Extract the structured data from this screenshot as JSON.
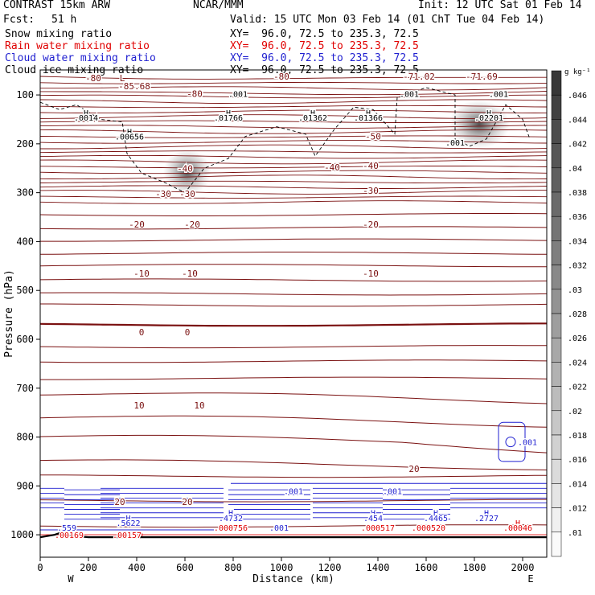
{
  "header": {
    "model": "CONTRAST 15km ARW",
    "org": "NCAR/MMM",
    "init": "Init: 12 UTC Sat 01 Feb 14",
    "fcst_label": "Fcst:",
    "fcst_value": "51 h",
    "valid": "Valid: 15 UTC Mon 03 Feb 14 (01 ChT Tue 04 Feb 14)",
    "fields": [
      {
        "label": "Snow mixing ratio",
        "xy": "XY=  96.0, 72.5 to 235.3, 72.5",
        "color": "#000000"
      },
      {
        "label": "Rain water mixing ratio",
        "xy": "XY=  96.0, 72.5 to 235.3, 72.5",
        "color": "#e00000"
      },
      {
        "label": "Cloud water mixing ratio",
        "xy": "XY=  96.0, 72.5 to 235.3, 72.5",
        "color": "#1f1fd0"
      },
      {
        "label": "Cloud ice mixing ratio",
        "xy": "XY=  96.0, 72.5 to 235.3, 72.5",
        "color": "#000000"
      }
    ]
  },
  "chart_data": {
    "type": "contour cross-section",
    "xlabel": "Distance (km)",
    "ylabel": "Pressure (hPa)",
    "xlim": [
      0,
      2100
    ],
    "ylim": [
      1050,
      50
    ],
    "x_ticks": [
      0,
      200,
      400,
      600,
      800,
      1000,
      1200,
      1400,
      1600,
      1800,
      2000
    ],
    "y_ticks": [
      100,
      200,
      300,
      400,
      500,
      600,
      700,
      800,
      900,
      1000
    ],
    "x_end_labels": {
      "left": "W",
      "right": "E"
    },
    "colorbar": {
      "unit": "g kg⁻¹",
      "levels": [
        ".046",
        ".044",
        ".042",
        ".04",
        ".038",
        ".036",
        ".034",
        ".032",
        ".03",
        ".028",
        ".026",
        ".024",
        ".022",
        ".02",
        ".018",
        ".016",
        ".014",
        ".012",
        ".01"
      ]
    },
    "temperature_labels": [
      {
        "x": 220,
        "p": 65,
        "text": "-80"
      },
      {
        "x": 340,
        "p": 65,
        "text": "L"
      },
      {
        "x": 390,
        "p": 82,
        "text": "-85.68"
      },
      {
        "x": 640,
        "p": 97,
        "text": "-80"
      },
      {
        "x": 1000,
        "p": 62,
        "text": "-80"
      },
      {
        "x": 1570,
        "p": 62,
        "text": "-71.02"
      },
      {
        "x": 1830,
        "p": 62,
        "text": "-71.69"
      },
      {
        "x": 1380,
        "p": 185,
        "text": "-50"
      },
      {
        "x": 600,
        "p": 250,
        "text": "-40"
      },
      {
        "x": 1210,
        "p": 248,
        "text": "-40"
      },
      {
        "x": 1370,
        "p": 245,
        "text": "-40"
      },
      {
        "x": 510,
        "p": 302,
        "text": "-30"
      },
      {
        "x": 610,
        "p": 302,
        "text": "-30"
      },
      {
        "x": 1370,
        "p": 296,
        "text": "-30"
      },
      {
        "x": 400,
        "p": 365,
        "text": "-20"
      },
      {
        "x": 630,
        "p": 365,
        "text": "-20"
      },
      {
        "x": 1370,
        "p": 365,
        "text": "-20"
      },
      {
        "x": 420,
        "p": 465,
        "text": "-10"
      },
      {
        "x": 620,
        "p": 465,
        "text": "-10"
      },
      {
        "x": 1370,
        "p": 465,
        "text": "-10"
      },
      {
        "x": 420,
        "p": 585,
        "text": "0"
      },
      {
        "x": 610,
        "p": 585,
        "text": "0"
      },
      {
        "x": 410,
        "p": 735,
        "text": "10"
      },
      {
        "x": 660,
        "p": 735,
        "text": "10"
      },
      {
        "x": 1550,
        "p": 865,
        "text": "20"
      },
      {
        "x": 330,
        "p": 932,
        "text": "20"
      },
      {
        "x": 610,
        "p": 932,
        "text": "20"
      }
    ],
    "maxima_labels": [
      {
        "x": 190,
        "p": 146,
        "h": "H",
        "v": ".0014",
        "color": "#000000"
      },
      {
        "x": 370,
        "p": 185,
        "h": "H",
        "v": ".00656",
        "color": "#000000"
      },
      {
        "x": 780,
        "p": 146,
        "h": "H",
        "v": ".01766",
        "color": "#000000"
      },
      {
        "x": 1130,
        "p": 146,
        "h": "H",
        "v": ".01362",
        "color": "#000000"
      },
      {
        "x": 1360,
        "p": 146,
        "h": "H",
        "v": ".01366",
        "color": "#000000"
      },
      {
        "x": 1860,
        "p": 146,
        "h": "H",
        "v": ".02201",
        "color": "#000000"
      },
      {
        "x": 1870,
        "p": 45,
        "h": "H",
        "v": "",
        "color": "#000000"
      },
      {
        "x": 110,
        "p": 985,
        "h": "",
        "v": ".559",
        "color": "#1f1fd0"
      },
      {
        "x": 365,
        "p": 975,
        "h": "H",
        "v": ".5622",
        "color": "#1f1fd0"
      },
      {
        "x": 790,
        "p": 965,
        "h": "H",
        "v": ".4732",
        "color": "#1f1fd0"
      },
      {
        "x": 1380,
        "p": 965,
        "h": "H",
        "v": ".454",
        "color": "#1f1fd0"
      },
      {
        "x": 1640,
        "p": 965,
        "h": "H",
        "v": ".4465",
        "color": "#1f1fd0"
      },
      {
        "x": 1850,
        "p": 965,
        "h": "H",
        "v": ".2727",
        "color": "#1f1fd0"
      },
      {
        "x": 120,
        "p": 1000,
        "h": "",
        "v": ".00169",
        "color": "#e00000"
      },
      {
        "x": 360,
        "p": 1000,
        "h": "",
        "v": ".00157",
        "color": "#e00000"
      },
      {
        "x": 790,
        "p": 985,
        "h": "",
        "v": ".000756",
        "color": "#e00000"
      },
      {
        "x": 1400,
        "p": 985,
        "h": "",
        "v": ".000517",
        "color": "#e00000"
      },
      {
        "x": 1610,
        "p": 985,
        "h": "",
        "v": ".000520",
        "color": "#e00000"
      },
      {
        "x": 1980,
        "p": 985,
        "h": "H",
        "v": ".00046",
        "color": "#e00000"
      }
    ],
    "small_labels": [
      {
        "x": 820,
        "p": 97,
        "text": ".001",
        "color": "#000000"
      },
      {
        "x": 1530,
        "p": 97,
        "text": ".001",
        "color": "#000000"
      },
      {
        "x": 1900,
        "p": 97,
        "text": ".001",
        "color": "#000000"
      },
      {
        "x": 1720,
        "p": 197,
        "text": ".001",
        "color": "#000000"
      },
      {
        "x": 1050,
        "p": 910,
        "text": ".001",
        "color": "#1f1fd0"
      },
      {
        "x": 1460,
        "p": 910,
        "text": ".001",
        "color": "#1f1fd0"
      },
      {
        "x": 990,
        "p": 985,
        "text": ".001",
        "color": "#1f1fd0"
      },
      {
        "x": 2020,
        "p": 810,
        "text": ".001",
        "color": "#1f1fd0"
      }
    ]
  }
}
